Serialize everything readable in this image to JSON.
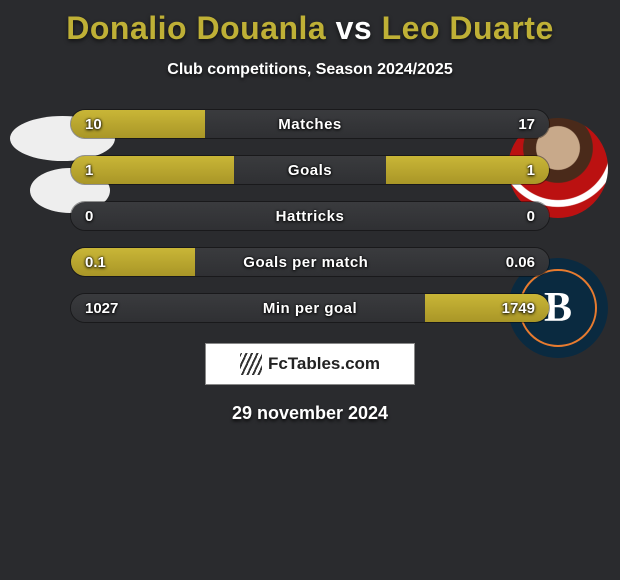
{
  "title_parts": {
    "p1": "Donalio Douanla",
    "vs": " vs ",
    "p2": "Leo Duarte"
  },
  "title_colors": {
    "p1": "#bfb036",
    "vs": "#ffffff",
    "p2": "#bfb036"
  },
  "subtitle": "Club competitions, Season 2024/2025",
  "brand": "FcTables.com",
  "date": "29 november 2024",
  "background_color": "#2a2b2e",
  "bar_fill_color": "#b7a530",
  "bar_bg_color": "#34363a",
  "text_color": "#ffffff",
  "rows": [
    {
      "metric": "Matches",
      "left": "10",
      "right": "17",
      "left_pct": 28,
      "right_pct": 0
    },
    {
      "metric": "Goals",
      "left": "1",
      "right": "1",
      "left_pct": 34,
      "right_pct": 34
    },
    {
      "metric": "Hattricks",
      "left": "0",
      "right": "0",
      "left_pct": 0,
      "right_pct": 0
    },
    {
      "metric": "Goals per match",
      "left": "0.1",
      "right": "0.06",
      "left_pct": 26,
      "right_pct": 0
    },
    {
      "metric": "Min per goal",
      "left": "1027",
      "right": "1749",
      "left_pct": 0,
      "right_pct": 26
    }
  ]
}
